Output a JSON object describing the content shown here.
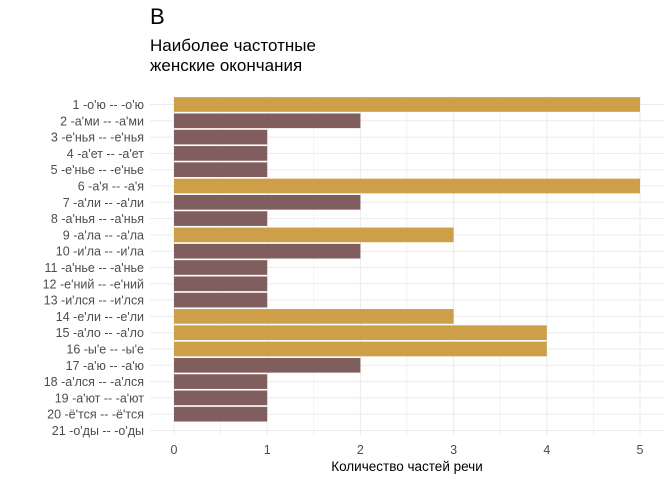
{
  "panel": {
    "tag": "B",
    "title": "Наиболее частотные\nженские окончания"
  },
  "chart_data": {
    "type": "bar",
    "orientation": "horizontal",
    "title": "Наиболее частотные\nженские окончания",
    "xlabel": "Количество частей речи",
    "ylabel": "",
    "xlim": [
      0,
      5
    ],
    "xticks": [
      0,
      1,
      2,
      3,
      4,
      5
    ],
    "grid": true,
    "colors": {
      "highlight": "#CC9F48",
      "normal": "#805E5E"
    },
    "categories": [
      "1 -о'ю -- -о'ю",
      "2 -а'ми -- -а'ми",
      "3 -е'нья -- -е'нья",
      "4 -а'ет -- -а'ет",
      "5 -е'нье -- -е'нье",
      "6 -а'я -- -а'я",
      "7 -а'ли -- -а'ли",
      "8 -а'нья -- -а'нья",
      "9 -а'ла -- -а'ла",
      "10 -и'ла -- -и'ла",
      "11 -а'нье -- -а'нье",
      "12 -е'ний -- -е'ний",
      "13 -и'лся -- -и'лся",
      "14 -е'ли -- -е'ли",
      "15 -а'ло -- -а'ло",
      "16 -ы'е -- -ы'е",
      "17 -а'ю -- -а'ю",
      "18 -а'лся -- -а'лся",
      "19 -а'ют -- -а'ют",
      "20 -ё'тся -- -ё'тся",
      "21 -о'ды -- -о'ды"
    ],
    "values": [
      5,
      2,
      1,
      1,
      1,
      5,
      2,
      1,
      3,
      2,
      1,
      1,
      1,
      3,
      4,
      4,
      2,
      1,
      1,
      1,
      0
    ],
    "highlight": [
      true,
      false,
      false,
      false,
      false,
      true,
      false,
      false,
      true,
      false,
      false,
      false,
      false,
      true,
      true,
      true,
      false,
      false,
      false,
      false,
      false
    ]
  }
}
